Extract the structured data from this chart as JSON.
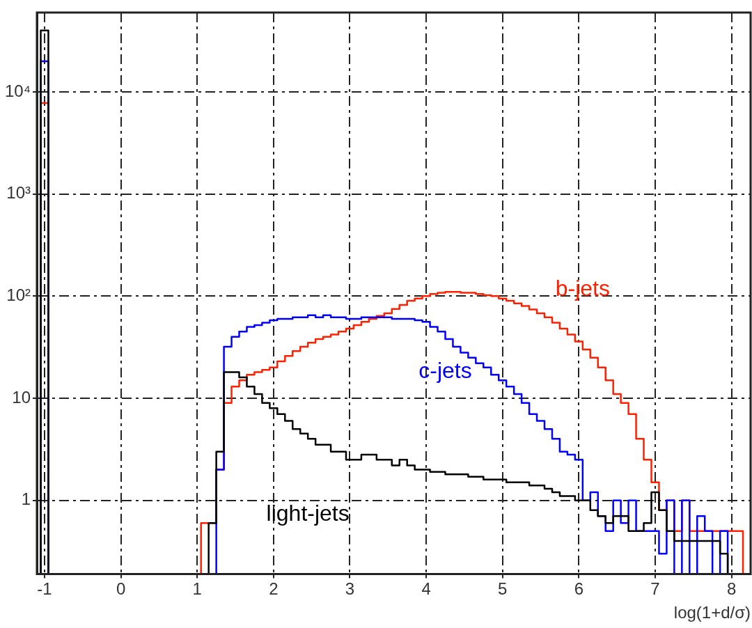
{
  "chart_data": {
    "type": "histogram",
    "xlabel": "log(1+d/σ)",
    "bins": [
      -1.05,
      -0.95,
      -0.85,
      -0.75,
      -0.65,
      -0.55,
      -0.45,
      -0.35,
      -0.25,
      -0.15,
      -0.05,
      0.05,
      0.15,
      0.25,
      0.35,
      0.45,
      0.55,
      0.65,
      0.75,
      0.85,
      0.95,
      1.05,
      1.15,
      1.25,
      1.35,
      1.45,
      1.55,
      1.65,
      1.75,
      1.85,
      1.95,
      2.05,
      2.15,
      2.25,
      2.35,
      2.45,
      2.55,
      2.65,
      2.75,
      2.85,
      2.95,
      3.05,
      3.15,
      3.25,
      3.35,
      3.45,
      3.55,
      3.65,
      3.75,
      3.85,
      3.95,
      4.05,
      4.15,
      4.25,
      4.35,
      4.45,
      4.55,
      4.65,
      4.75,
      4.85,
      4.95,
      5.05,
      5.15,
      5.25,
      5.35,
      5.45,
      5.55,
      5.65,
      5.75,
      5.85,
      5.95,
      6.05,
      6.15,
      6.25,
      6.35,
      6.45,
      6.55,
      6.65,
      6.75,
      6.85,
      6.95,
      7.05,
      7.15,
      7.25,
      7.35,
      7.45,
      7.55,
      7.65,
      7.75,
      7.85,
      7.95,
      8.05,
      8.15,
      8.25
    ],
    "series": [
      {
        "name": "light-jets",
        "color": "#000000",
        "values": [
          40000,
          null,
          null,
          null,
          null,
          null,
          null,
          null,
          null,
          null,
          null,
          null,
          null,
          null,
          null,
          null,
          null,
          null,
          null,
          null,
          null,
          null,
          0.6,
          3,
          18,
          18,
          16,
          13,
          11,
          9,
          8,
          7,
          6,
          5,
          4.5,
          4,
          3.5,
          3.5,
          3,
          3,
          2.5,
          2.5,
          2.8,
          2.8,
          2.5,
          2.5,
          2.2,
          2.5,
          2.2,
          2,
          2,
          1.9,
          1.9,
          1.8,
          1.8,
          1.8,
          1.7,
          1.7,
          1.6,
          1.6,
          1.6,
          1.5,
          1.5,
          1.5,
          1.4,
          1.4,
          1.3,
          1.2,
          1.1,
          1.1,
          1,
          1,
          0.8,
          0.7,
          0.6,
          0.7,
          0.7,
          0.5,
          0.5,
          0.6,
          1.2,
          0.8,
          0.5,
          0.4,
          0.4,
          0.4,
          0.4,
          0.4,
          0.4,
          0.3,
          null,
          null,
          null
        ]
      },
      {
        "name": "c-jets",
        "color": "#0000ff",
        "values": [
          20000,
          null,
          null,
          null,
          null,
          null,
          null,
          null,
          null,
          null,
          null,
          null,
          null,
          null,
          null,
          null,
          null,
          null,
          null,
          null,
          null,
          null,
          null,
          2,
          32,
          40,
          45,
          50,
          52,
          55,
          58,
          60,
          60,
          62,
          62,
          65,
          62,
          65,
          62,
          62,
          60,
          60,
          62,
          62,
          62,
          62,
          60,
          60,
          60,
          58,
          56,
          50,
          45,
          38,
          32,
          28,
          25,
          22,
          20,
          17,
          15,
          13,
          11,
          9,
          7,
          6,
          5,
          4,
          3,
          2.8,
          2.5,
          1,
          1.2,
          0.7,
          0.5,
          1,
          0.6,
          1,
          0.5,
          0.5,
          0.5,
          0.3,
          1,
          null,
          1,
          null,
          0.7,
          0.5,
          null,
          0.5,
          null,
          null,
          null
        ]
      },
      {
        "name": "b-jets",
        "color": "#ff2000",
        "values": [
          7800,
          null,
          null,
          null,
          null,
          null,
          null,
          null,
          null,
          null,
          null,
          null,
          null,
          null,
          null,
          null,
          null,
          null,
          null,
          null,
          null,
          0.6,
          0.6,
          2,
          9,
          13,
          15,
          17,
          18,
          19,
          20,
          23,
          26,
          29,
          32,
          35,
          38,
          40,
          42,
          45,
          48,
          52,
          56,
          60,
          64,
          68,
          75,
          82,
          90,
          95,
          100,
          105,
          108,
          110,
          110,
          108,
          108,
          105,
          102,
          100,
          95,
          90,
          85,
          80,
          74,
          68,
          62,
          55,
          48,
          42,
          36,
          30,
          25,
          20,
          15,
          11,
          9,
          7,
          4,
          2.5,
          1.5,
          0.8,
          1,
          0.5,
          1,
          0.5,
          0.5,
          0.5,
          0.5,
          0.5,
          0.5,
          0.5,
          null
        ]
      }
    ],
    "xlim": [
      -1.1,
      8.25
    ],
    "xticks": [
      -1,
      0,
      1,
      2,
      3,
      4,
      5,
      6,
      7,
      8
    ],
    "ylim": [
      0.19,
      60000
    ],
    "yticks": [
      1,
      10,
      {
        "value": 100,
        "label": "10²"
      },
      {
        "value": 1000,
        "label": "10³"
      },
      {
        "value": 10000,
        "label": "10⁴"
      }
    ],
    "log": "y",
    "grid": true,
    "legend": false
  }
}
